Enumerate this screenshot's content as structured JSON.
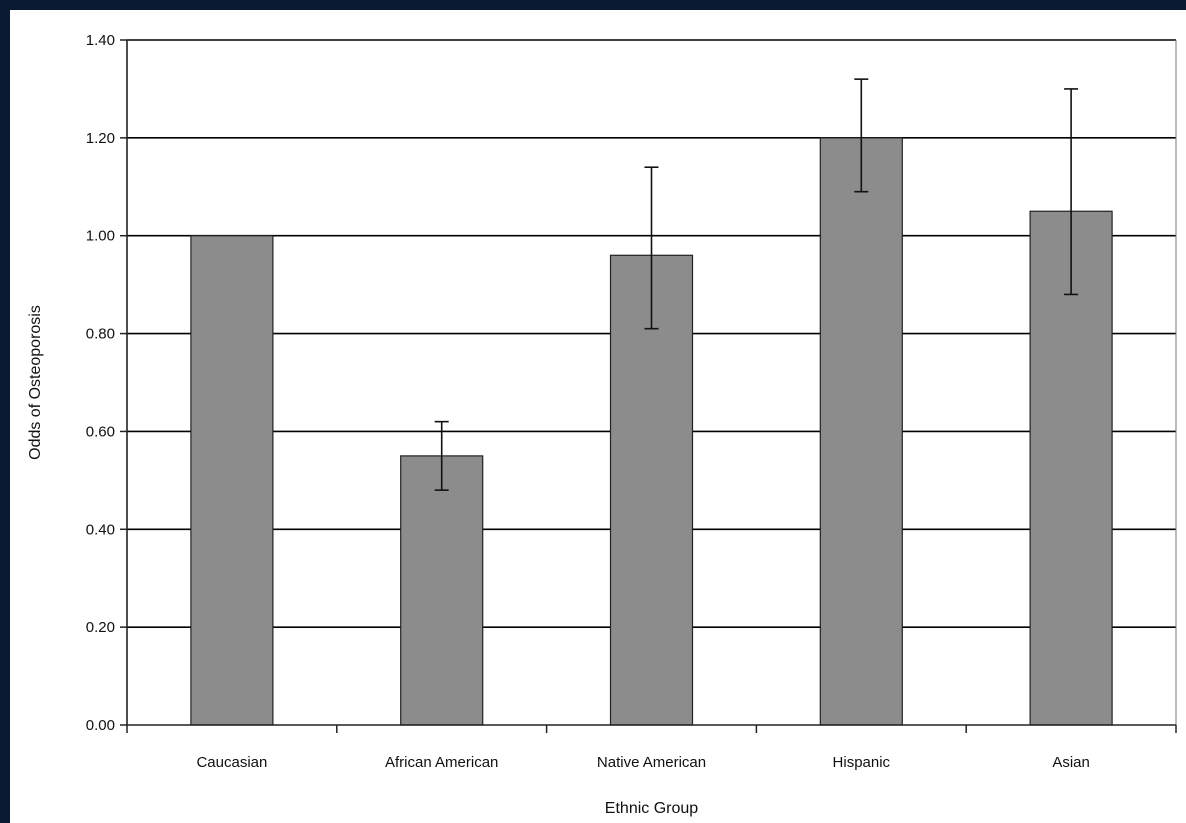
{
  "colors": {
    "background": "#0b1a33",
    "plot_background": "#ffffff",
    "bar_fill": "#8c8c8c",
    "bar_stroke": "#222222",
    "grid": "#000000"
  },
  "chart_data": {
    "type": "bar",
    "title": "",
    "xlabel": "Ethnic Group",
    "ylabel": "Odds of Osteoporosis",
    "ylim": [
      0,
      1.4
    ],
    "yticks": [
      0,
      0.2,
      0.4,
      0.6,
      0.8,
      1.0,
      1.2,
      1.4
    ],
    "ytick_labels": [
      "0.00",
      "0.20",
      "0.40",
      "0.60",
      "0.80",
      "1.00",
      "1.20",
      "1.40"
    ],
    "categories": [
      "Caucasian",
      "African American",
      "Native American",
      "Hispanic",
      "Asian"
    ],
    "values": [
      1.0,
      0.55,
      0.96,
      1.2,
      1.05
    ],
    "error_bars": [
      null,
      {
        "low": 0.48,
        "high": 0.62
      },
      {
        "low": 0.81,
        "high": 1.14
      },
      {
        "low": 1.09,
        "high": 1.32
      },
      {
        "low": 0.88,
        "high": 1.3
      }
    ],
    "grid": true,
    "legend": "none"
  }
}
